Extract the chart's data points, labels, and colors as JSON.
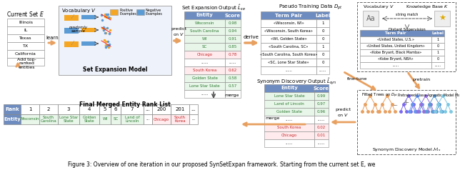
{
  "caption": "Figure 3: Overview of one iteration in our proposed SynSetExpan framework. Starting from the current set E, we",
  "bg_color": "#ffffff",
  "current_set_entities": [
    "Illinois",
    "IL",
    "Texas",
    "TX",
    "California",
    "..."
  ],
  "set_expansion_output": {
    "headers": [
      "Entity",
      "Score"
    ],
    "rows": [
      [
        "Wisconsin",
        "0.98",
        "green"
      ],
      [
        "South Carolina",
        "0.94",
        "green"
      ],
      [
        "WI",
        "0.91",
        "green"
      ],
      [
        "SC",
        "0.85",
        "green"
      ],
      [
        "Chicago",
        "0.78",
        "red"
      ],
      [
        "......",
        "......",
        "black"
      ],
      [
        "South Korea",
        "0.62",
        "red"
      ],
      [
        "Golden State",
        "0.58",
        "green"
      ],
      [
        "Lone Star State",
        "0.57",
        "green"
      ],
      [
        "......",
        "......",
        "black"
      ]
    ]
  },
  "pseudo_training_data": {
    "headers": [
      "Term Pair",
      "Label"
    ],
    "rows": [
      [
        "«Wisconsin, WI»",
        "1"
      ],
      [
        "«Wisconsin, South Korea»",
        "0"
      ],
      [
        "«WI, Golden State»",
        "0"
      ],
      [
        "«South Carolina, SC»",
        "1"
      ],
      [
        "«South Carolina, South Korea»",
        "0"
      ],
      [
        "«SC, Lone Star State»",
        "0"
      ],
      [
        "......",
        "......"
      ]
    ]
  },
  "synonym_discovery_output": {
    "headers": [
      "Entity",
      "Score"
    ],
    "rows": [
      [
        "Lone Star State",
        "0.99",
        "green"
      ],
      [
        "Land of Lincoln",
        "0.97",
        "green"
      ],
      [
        "Golden State",
        "0.96",
        "green"
      ],
      [
        "......",
        "......",
        "black"
      ],
      [
        "South Korea",
        "0.02",
        "red"
      ],
      [
        "Chicago",
        "0.01",
        "red"
      ],
      [
        "......",
        "......",
        "black"
      ]
    ]
  },
  "knowledge_base_table": {
    "headers": [
      "Term Pair",
      "Label"
    ],
    "rows": [
      [
        "«United States, U.S.»",
        "1"
      ],
      [
        "«United States, United Kingdom»",
        "0"
      ],
      [
        "«Kobe Bryant, Black Mamba»",
        "1"
      ],
      [
        "«Kobe Bryant, NBA»",
        "0"
      ],
      [
        "......",
        "......"
      ]
    ]
  },
  "final_rank_headers": [
    "Rank",
    "1",
    "2",
    "3",
    "4",
    "5",
    "6",
    "7",
    "...",
    "200",
    "201",
    "..."
  ],
  "final_rank_entities": [
    "Entity",
    "Wisconsin",
    "South\nCarolina",
    "Lone Star\nState",
    "Golden\nState",
    "WI",
    "SC",
    "Land of\nLincoln",
    "...",
    "Chicago",
    "South\nKorea",
    "..."
  ],
  "final_rank_colors_entity": [
    "green",
    "green",
    "green",
    "green",
    "green",
    "green",
    "green",
    "black",
    "red",
    "red",
    "black"
  ],
  "header_bg": "#6E8CBF",
  "table_header_bg": "#6E8CBF",
  "green_row_bg": "#E8F5E9",
  "red_row_bg": "#FFEBEE",
  "green_text": "#2E7D32",
  "red_text": "#C62828"
}
